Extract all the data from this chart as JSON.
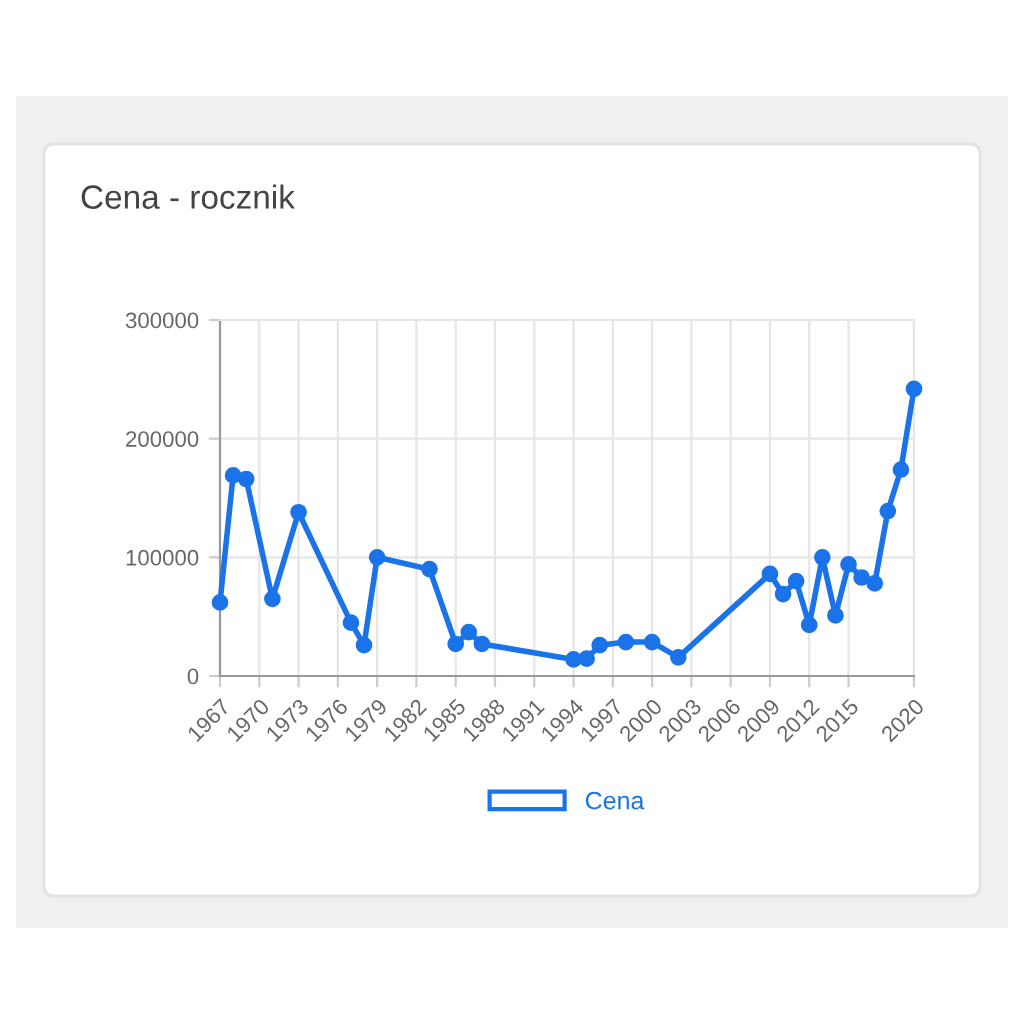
{
  "chart_data": {
    "type": "line",
    "title": "Cena - rocznik",
    "x": [
      1967,
      1968,
      1969,
      1971,
      1973,
      1977,
      1978,
      1979,
      1983,
      1985,
      1986,
      1987,
      1994,
      1995,
      1996,
      1998,
      2000,
      2002,
      2009,
      2010,
      2011,
      2012,
      2013,
      2014,
      2015,
      2016,
      2017,
      2018,
      2019,
      2020
    ],
    "series": [
      {
        "name": "Cena",
        "color": "#1a73e8",
        "values": [
          62000,
          169000,
          166000,
          65000,
          138000,
          45000,
          26000,
          100000,
          90000,
          27000,
          37000,
          27000,
          14000,
          14600,
          26000,
          28600,
          28600,
          15700,
          86000,
          69000,
          80000,
          43000,
          100000,
          51000,
          94000,
          83000,
          78000,
          139000,
          174000,
          242000
        ]
      }
    ],
    "xlim": [
      1967,
      2020
    ],
    "xticks": [
      1967,
      1970,
      1973,
      1976,
      1979,
      1982,
      1985,
      1988,
      1991,
      1994,
      1997,
      2000,
      2003,
      2006,
      2009,
      2012,
      2015,
      2020
    ],
    "ylim": [
      0,
      300000
    ],
    "yticks": [
      0,
      100000,
      200000,
      300000
    ],
    "grid": true,
    "legend": "bottom",
    "marker": "circle",
    "line_style": "solid"
  }
}
